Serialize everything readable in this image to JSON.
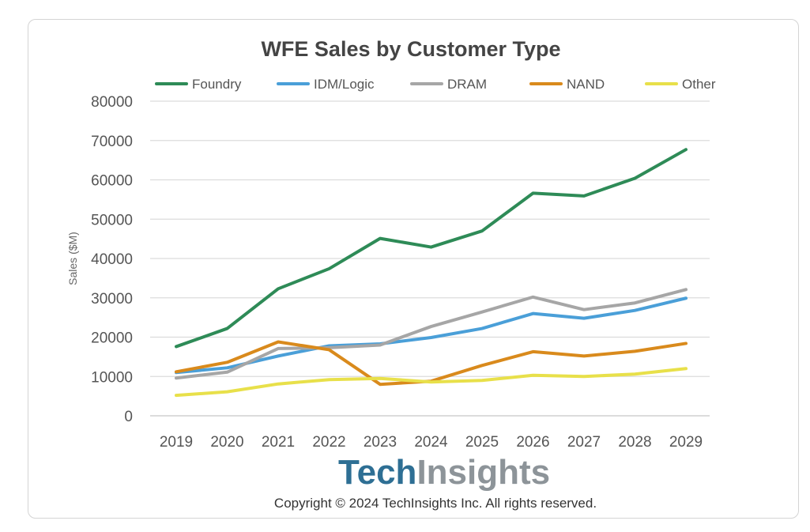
{
  "chart_data": {
    "type": "line",
    "title": "WFE Sales by Customer Type",
    "xlabel": "",
    "ylabel": "Sales ($M)",
    "x": [
      "2019",
      "2020",
      "2021",
      "2022",
      "2023",
      "2024",
      "2025",
      "2026",
      "2027",
      "2028",
      "2029"
    ],
    "ylim": [
      0,
      80000
    ],
    "yticks": [
      "0",
      "10000",
      "20000",
      "30000",
      "40000",
      "50000",
      "60000",
      "70000",
      "80000"
    ],
    "grid": true,
    "legend_position": "top",
    "series": [
      {
        "name": "Foundry",
        "color": "#2e8b57",
        "values": [
          17600,
          22200,
          32300,
          37400,
          45100,
          42900,
          47000,
          56600,
          55900,
          60400,
          67700
        ]
      },
      {
        "name": "IDM/Logic",
        "color": "#4a9fd8",
        "values": [
          11000,
          12200,
          15200,
          17800,
          18300,
          19900,
          22200,
          26000,
          24800,
          26800,
          29900
        ]
      },
      {
        "name": "DRAM",
        "color": "#a6a6a6",
        "values": [
          9600,
          11100,
          17100,
          17300,
          18000,
          22700,
          26400,
          30200,
          27000,
          28700,
          32100
        ]
      },
      {
        "name": "NAND",
        "color": "#d98a1c",
        "values": [
          11200,
          13600,
          18800,
          16800,
          8000,
          8800,
          12800,
          16300,
          15200,
          16400,
          18400
        ]
      },
      {
        "name": "Other",
        "color": "#e8e04a",
        "values": [
          5200,
          6100,
          8100,
          9200,
          9500,
          8600,
          9000,
          10300,
          10000,
          10600,
          12000
        ]
      }
    ]
  },
  "branding": {
    "logo_part1": "Tech",
    "logo_part2": "Insights",
    "copyright": "Copyright © 2024 TechInsights Inc.  All rights reserved."
  }
}
